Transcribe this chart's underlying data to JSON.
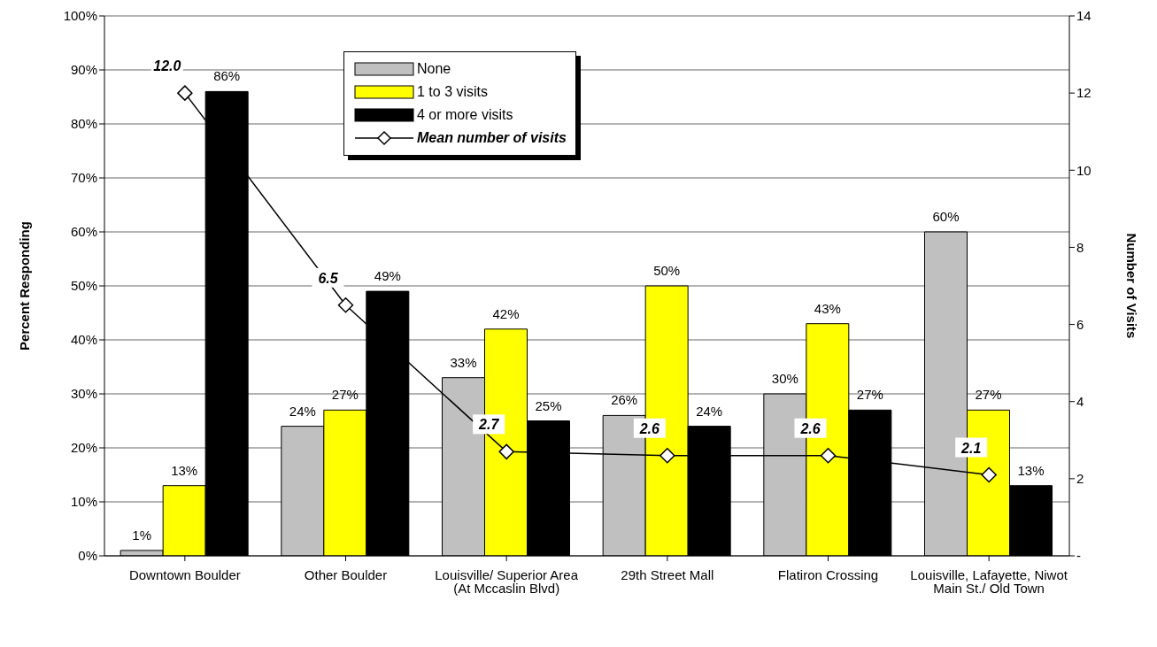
{
  "chart_data": {
    "type": "bar",
    "ylabel": "Percent Responding",
    "y2label": "Number of Visits",
    "categories": [
      "Downtown Boulder",
      "Other Boulder",
      "Louisville/ Superior Area (At Mccaslin Blvd)",
      "29th Street Mall",
      "Flatiron Crossing",
      "Louisville, Lafayette, Niwot Main St./ Old Town"
    ],
    "series": [
      {
        "name": "None",
        "color": "#c0c0c0",
        "values": [
          1,
          24,
          33,
          26,
          30,
          60
        ],
        "value_labels": [
          "1%",
          "24%",
          "33%",
          "26%",
          "30%",
          "60%"
        ]
      },
      {
        "name": "1 to 3 visits",
        "color": "#ffff00",
        "values": [
          13,
          27,
          42,
          50,
          43,
          27
        ],
        "value_labels": [
          "13%",
          "27%",
          "42%",
          "50%",
          "43%",
          "27%"
        ]
      },
      {
        "name": "4 or more visits",
        "color": "#000000",
        "values": [
          86,
          49,
          25,
          24,
          27,
          13
        ],
        "value_labels": [
          "86%",
          "49%",
          "25%",
          "24%",
          "27%",
          "13%"
        ]
      },
      {
        "name": "Mean number of visits",
        "type": "line",
        "axis": "y2",
        "color": "#000000",
        "marker": "diamond",
        "values": [
          12.0,
          6.5,
          2.7,
          2.6,
          2.6,
          2.1
        ],
        "value_labels": [
          "12.0",
          "6.5",
          "2.7",
          "2.6",
          "2.6",
          "2.1"
        ]
      }
    ],
    "ylim": [
      0,
      100
    ],
    "yticks": [
      {
        "value": 0,
        "label": "0%"
      },
      {
        "value": 10,
        "label": "10%"
      },
      {
        "value": 20,
        "label": "20%"
      },
      {
        "value": 30,
        "label": "30%"
      },
      {
        "value": 40,
        "label": "40%"
      },
      {
        "value": 50,
        "label": "50%"
      },
      {
        "value": 60,
        "label": "60%"
      },
      {
        "value": 70,
        "label": "70%"
      },
      {
        "value": 80,
        "label": "80%"
      },
      {
        "value": 90,
        "label": "90%"
      },
      {
        "value": 100,
        "label": "100%"
      }
    ],
    "y2lim": [
      0,
      14
    ],
    "y2ticks": [
      {
        "value": 0,
        "label": "-"
      },
      2,
      4,
      6,
      8,
      10,
      12,
      14
    ],
    "grid": "y",
    "legend": "top"
  }
}
